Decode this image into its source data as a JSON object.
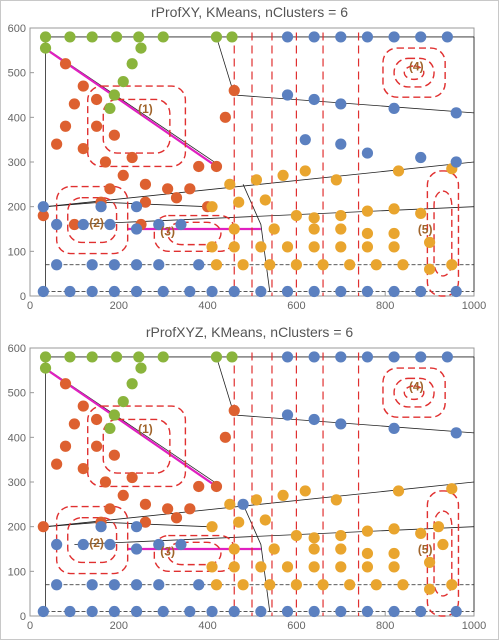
{
  "chart_data": [
    {
      "type": "scatter",
      "title": "rProfXY, KMeans, nClusters = 6",
      "xlim": [
        0,
        1000
      ],
      "ylim": [
        0,
        600
      ],
      "xticks": [
        0,
        200,
        400,
        600,
        800,
        1000
      ],
      "yticks": [
        0,
        100,
        200,
        300,
        400,
        500,
        600
      ],
      "grid": false,
      "series": [
        {
          "color": "#8ab43c",
          "points": [
            [
              35,
              580
            ],
            [
              35,
              555
            ],
            [
              90,
              580
            ],
            [
              140,
              580
            ],
            [
              195,
              580
            ],
            [
              245,
              580
            ],
            [
              300,
              580
            ],
            [
              420,
              580
            ],
            [
              455,
              580
            ],
            [
              250,
              555
            ],
            [
              230,
              520
            ],
            [
              210,
              480
            ],
            [
              190,
              450
            ],
            [
              180,
              420
            ]
          ]
        },
        {
          "color": "#dd6030",
          "points": [
            [
              80,
              520
            ],
            [
              120,
              470
            ],
            [
              150,
              440
            ],
            [
              100,
              430
            ],
            [
              80,
              380
            ],
            [
              150,
              380
            ],
            [
              190,
              360
            ],
            [
              60,
              340
            ],
            [
              120,
              330
            ],
            [
              170,
              300
            ],
            [
              230,
              310
            ],
            [
              380,
              290
            ],
            [
              420,
              290
            ],
            [
              210,
              270
            ],
            [
              260,
              250
            ],
            [
              180,
              240
            ],
            [
              310,
              240
            ],
            [
              360,
              240
            ],
            [
              160,
              210
            ],
            [
              260,
              210
            ],
            [
              330,
              220
            ],
            [
              400,
              200
            ],
            [
              30,
              180
            ],
            [
              100,
              160
            ],
            [
              250,
              160
            ],
            [
              440,
              400
            ],
            [
              460,
              460
            ]
          ]
        },
        {
          "color": "#e9a52e",
          "points": [
            [
              450,
              250
            ],
            [
              510,
              260
            ],
            [
              570,
              270
            ],
            [
              620,
              280
            ],
            [
              690,
              260
            ],
            [
              830,
              280
            ],
            [
              950,
              285
            ],
            [
              410,
              200
            ],
            [
              470,
              210
            ],
            [
              530,
              215
            ],
            [
              600,
              180
            ],
            [
              640,
              175
            ],
            [
              700,
              180
            ],
            [
              760,
              190
            ],
            [
              820,
              195
            ],
            [
              880,
              185
            ],
            [
              460,
              150
            ],
            [
              550,
              150
            ],
            [
              640,
              150
            ],
            [
              700,
              150
            ],
            [
              760,
              140
            ],
            [
              820,
              140
            ],
            [
              410,
              110
            ],
            [
              460,
              110
            ],
            [
              520,
              110
            ],
            [
              580,
              110
            ],
            [
              640,
              110
            ],
            [
              700,
              110
            ],
            [
              760,
              110
            ],
            [
              820,
              110
            ],
            [
              900,
              120
            ],
            [
              420,
              70
            ],
            [
              480,
              70
            ],
            [
              540,
              70
            ],
            [
              600,
              70
            ],
            [
              660,
              70
            ],
            [
              720,
              70
            ],
            [
              780,
              70
            ],
            [
              840,
              70
            ],
            [
              900,
              60
            ],
            [
              950,
              70
            ]
          ]
        },
        {
          "color": "#5b80c0",
          "points": [
            [
              580,
              580
            ],
            [
              640,
              580
            ],
            [
              700,
              580
            ],
            [
              760,
              580
            ],
            [
              820,
              580
            ],
            [
              880,
              580
            ],
            [
              940,
              580
            ],
            [
              30,
              200
            ],
            [
              160,
              200
            ],
            [
              240,
              200
            ],
            [
              60,
              160
            ],
            [
              120,
              160
            ],
            [
              180,
              160
            ],
            [
              240,
              150
            ],
            [
              290,
              160
            ],
            [
              340,
              160
            ],
            [
              30,
              10
            ],
            [
              90,
              10
            ],
            [
              140,
              10
            ],
            [
              190,
              10
            ],
            [
              240,
              10
            ],
            [
              300,
              10
            ],
            [
              360,
              10
            ],
            [
              410,
              10
            ],
            [
              460,
              10
            ],
            [
              520,
              10
            ],
            [
              580,
              10
            ],
            [
              640,
              10
            ],
            [
              700,
              10
            ],
            [
              760,
              10
            ],
            [
              820,
              10
            ],
            [
              880,
              10
            ],
            [
              960,
              10
            ],
            [
              60,
              70
            ],
            [
              140,
              70
            ],
            [
              190,
              70
            ],
            [
              240,
              70
            ],
            [
              290,
              70
            ],
            [
              380,
              70
            ],
            [
              580,
              450
            ],
            [
              640,
              440
            ],
            [
              700,
              430
            ],
            [
              820,
              420
            ],
            [
              960,
              410
            ],
            [
              620,
              350
            ],
            [
              700,
              340
            ],
            [
              760,
              320
            ],
            [
              880,
              310
            ],
            [
              960,
              300
            ]
          ]
        }
      ],
      "cluster_labels": [
        "(1)",
        "(2)",
        "(3)",
        "(4)",
        "(5)"
      ]
    },
    {
      "type": "scatter",
      "title": "rProfXYZ, KMeans, nClusters = 6",
      "xlim": [
        0,
        1000
      ],
      "ylim": [
        0,
        600
      ],
      "xticks": [
        0,
        200,
        400,
        600,
        800,
        1000
      ],
      "yticks": [
        0,
        100,
        200,
        300,
        400,
        500,
        600
      ],
      "grid": false,
      "series": [
        {
          "color": "#8ab43c",
          "points": [
            [
              35,
              580
            ],
            [
              35,
              555
            ],
            [
              90,
              580
            ],
            [
              140,
              580
            ],
            [
              195,
              580
            ],
            [
              245,
              580
            ],
            [
              300,
              580
            ],
            [
              420,
              580
            ],
            [
              455,
              580
            ],
            [
              250,
              555
            ],
            [
              230,
              520
            ],
            [
              210,
              480
            ],
            [
              190,
              450
            ],
            [
              180,
              420
            ]
          ]
        },
        {
          "color": "#dd6030",
          "points": [
            [
              80,
              520
            ],
            [
              120,
              470
            ],
            [
              150,
              440
            ],
            [
              100,
              430
            ],
            [
              80,
              380
            ],
            [
              150,
              380
            ],
            [
              190,
              360
            ],
            [
              60,
              340
            ],
            [
              120,
              330
            ],
            [
              170,
              300
            ],
            [
              230,
              310
            ],
            [
              380,
              290
            ],
            [
              420,
              290
            ],
            [
              210,
              270
            ],
            [
              260,
              250
            ],
            [
              180,
              240
            ],
            [
              310,
              240
            ],
            [
              360,
              240
            ],
            [
              160,
              210
            ],
            [
              260,
              210
            ],
            [
              330,
              220
            ],
            [
              30,
              200
            ],
            [
              440,
              400
            ],
            [
              460,
              460
            ]
          ]
        },
        {
          "color": "#e9a52e",
          "points": [
            [
              450,
              250
            ],
            [
              510,
              260
            ],
            [
              570,
              270
            ],
            [
              620,
              280
            ],
            [
              690,
              260
            ],
            [
              830,
              280
            ],
            [
              950,
              285
            ],
            [
              410,
              200
            ],
            [
              470,
              210
            ],
            [
              530,
              215
            ],
            [
              600,
              180
            ],
            [
              640,
              175
            ],
            [
              700,
              180
            ],
            [
              760,
              190
            ],
            [
              820,
              195
            ],
            [
              880,
              185
            ],
            [
              460,
              150
            ],
            [
              550,
              150
            ],
            [
              640,
              150
            ],
            [
              700,
              150
            ],
            [
              760,
              140
            ],
            [
              820,
              140
            ],
            [
              410,
              110
            ],
            [
              460,
              110
            ],
            [
              520,
              110
            ],
            [
              580,
              110
            ],
            [
              640,
              110
            ],
            [
              700,
              110
            ],
            [
              760,
              110
            ],
            [
              820,
              110
            ],
            [
              900,
              120
            ],
            [
              420,
              70
            ],
            [
              480,
              70
            ],
            [
              540,
              70
            ],
            [
              600,
              70
            ],
            [
              660,
              70
            ],
            [
              720,
              70
            ],
            [
              780,
              70
            ],
            [
              840,
              70
            ],
            [
              900,
              60
            ],
            [
              950,
              70
            ],
            [
              920,
              200
            ],
            [
              930,
              160
            ]
          ]
        },
        {
          "color": "#5b80c0",
          "points": [
            [
              580,
              580
            ],
            [
              640,
              580
            ],
            [
              700,
              580
            ],
            [
              760,
              580
            ],
            [
              820,
              580
            ],
            [
              880,
              580
            ],
            [
              940,
              580
            ],
            [
              160,
              200
            ],
            [
              240,
              200
            ],
            [
              60,
              160
            ],
            [
              120,
              160
            ],
            [
              180,
              160
            ],
            [
              240,
              150
            ],
            [
              290,
              160
            ],
            [
              340,
              160
            ],
            [
              30,
              10
            ],
            [
              90,
              10
            ],
            [
              140,
              10
            ],
            [
              190,
              10
            ],
            [
              240,
              10
            ],
            [
              300,
              10
            ],
            [
              360,
              10
            ],
            [
              410,
              10
            ],
            [
              460,
              10
            ],
            [
              520,
              10
            ],
            [
              580,
              10
            ],
            [
              640,
              10
            ],
            [
              700,
              10
            ],
            [
              760,
              10
            ],
            [
              820,
              10
            ],
            [
              880,
              10
            ],
            [
              960,
              10
            ],
            [
              60,
              70
            ],
            [
              140,
              70
            ],
            [
              190,
              70
            ],
            [
              240,
              70
            ],
            [
              290,
              70
            ],
            [
              380,
              70
            ],
            [
              580,
              450
            ],
            [
              640,
              440
            ],
            [
              700,
              430
            ],
            [
              820,
              420
            ],
            [
              960,
              410
            ],
            [
              480,
              250
            ]
          ]
        }
      ],
      "cluster_labels": [
        "(1)",
        "(2)",
        "(3)",
        "(4)",
        "(5)"
      ]
    }
  ]
}
